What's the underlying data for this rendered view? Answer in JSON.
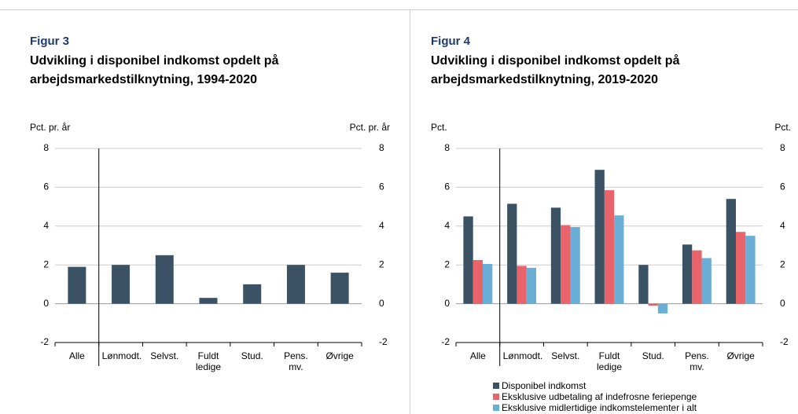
{
  "chart_data": [
    {
      "type": "bar",
      "label": "Figur 3",
      "title": "Udvikling i disponibel indkomst opdelt på arbejdsmarkedstilknytning, 1994-2020",
      "ylabel": "Pct. pr. år",
      "y2label": "Pct. pr. år",
      "categories": [
        "Alle",
        "Lønmodt.",
        "Selvst.",
        "Fuldt ledige",
        "Stud.",
        "Pens. mv.",
        "Øvrige"
      ],
      "series": [
        {
          "name": null,
          "color": "#3b5264",
          "values": [
            1.9,
            2.0,
            2.5,
            0.3,
            1.0,
            2.0,
            1.6
          ]
        }
      ],
      "ylim": [
        -2,
        8
      ],
      "yticks": [
        -2,
        0,
        2,
        4,
        6,
        8
      ],
      "y2lim": [
        -2,
        8
      ],
      "y2ticks": [
        -2,
        0,
        2,
        4,
        6,
        8
      ],
      "grid": true
    },
    {
      "type": "bar",
      "label": "Figur 4",
      "title": "Udvikling i disponibel indkomst opdelt på arbejdsmarkedstilknytning, 2019-2020",
      "ylabel": "Pct.",
      "y2label": "Pct.",
      "categories": [
        "Alle",
        "Lønmodt.",
        "Selvst.",
        "Fuldt ledige",
        "Stud.",
        "Pens. mv.",
        "Øvrige"
      ],
      "series": [
        {
          "name": "Disponibel indkomst",
          "color": "#3b5264",
          "values": [
            4.5,
            5.15,
            4.95,
            6.9,
            2.0,
            3.05,
            5.4
          ]
        },
        {
          "name": "Eksklusive udbetaling af indefrosne feriepenge",
          "color": "#e8636a",
          "values": [
            2.25,
            1.95,
            4.05,
            5.85,
            -0.1,
            2.75,
            3.7
          ]
        },
        {
          "name": "Eksklusive midlertidige indkomstelementer i alt",
          "color": "#6aaed6",
          "values": [
            2.05,
            1.85,
            3.95,
            4.55,
            -0.5,
            2.35,
            3.5
          ]
        }
      ],
      "ylim": [
        -2,
        8
      ],
      "yticks": [
        -2,
        0,
        2,
        4,
        6,
        8
      ],
      "y2lim": [
        -2,
        8
      ],
      "y2ticks": [
        -2,
        0,
        2,
        4,
        6,
        8
      ],
      "grid": true,
      "legend": "bottom"
    }
  ]
}
